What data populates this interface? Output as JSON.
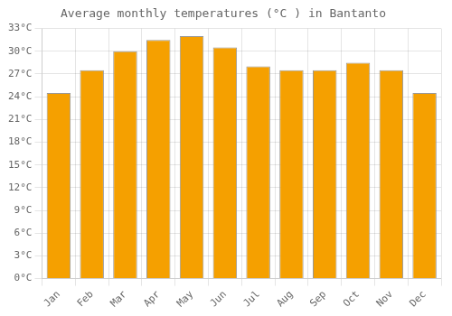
{
  "chart_data": {
    "type": "bar",
    "title": "Average monthly temperatures (°C ) in Bantanto",
    "categories": [
      "Jan",
      "Feb",
      "Mar",
      "Apr",
      "May",
      "Jun",
      "Jul",
      "Aug",
      "Sep",
      "Oct",
      "Nov",
      "Dec"
    ],
    "values": [
      24.5,
      27.5,
      30.0,
      31.5,
      32.0,
      30.5,
      28.0,
      27.5,
      27.5,
      28.5,
      27.5,
      24.5
    ],
    "color": "#F5A000",
    "ylim": [
      0,
      33
    ],
    "yticks": [
      {
        "value": 0,
        "label": "0°C"
      },
      {
        "value": 3,
        "label": "3°C"
      },
      {
        "value": 6,
        "label": "6°C"
      },
      {
        "value": 9,
        "label": "9°C"
      },
      {
        "value": 12,
        "label": "12°C"
      },
      {
        "value": 15,
        "label": "15°C"
      },
      {
        "value": 18,
        "label": "18°C"
      },
      {
        "value": 21,
        "label": "21°C"
      },
      {
        "value": 24,
        "label": "24°C"
      },
      {
        "value": 27,
        "label": "27°C"
      },
      {
        "value": 30,
        "label": "30°C"
      },
      {
        "value": 33,
        "label": "33°C"
      }
    ],
    "grid": true
  }
}
